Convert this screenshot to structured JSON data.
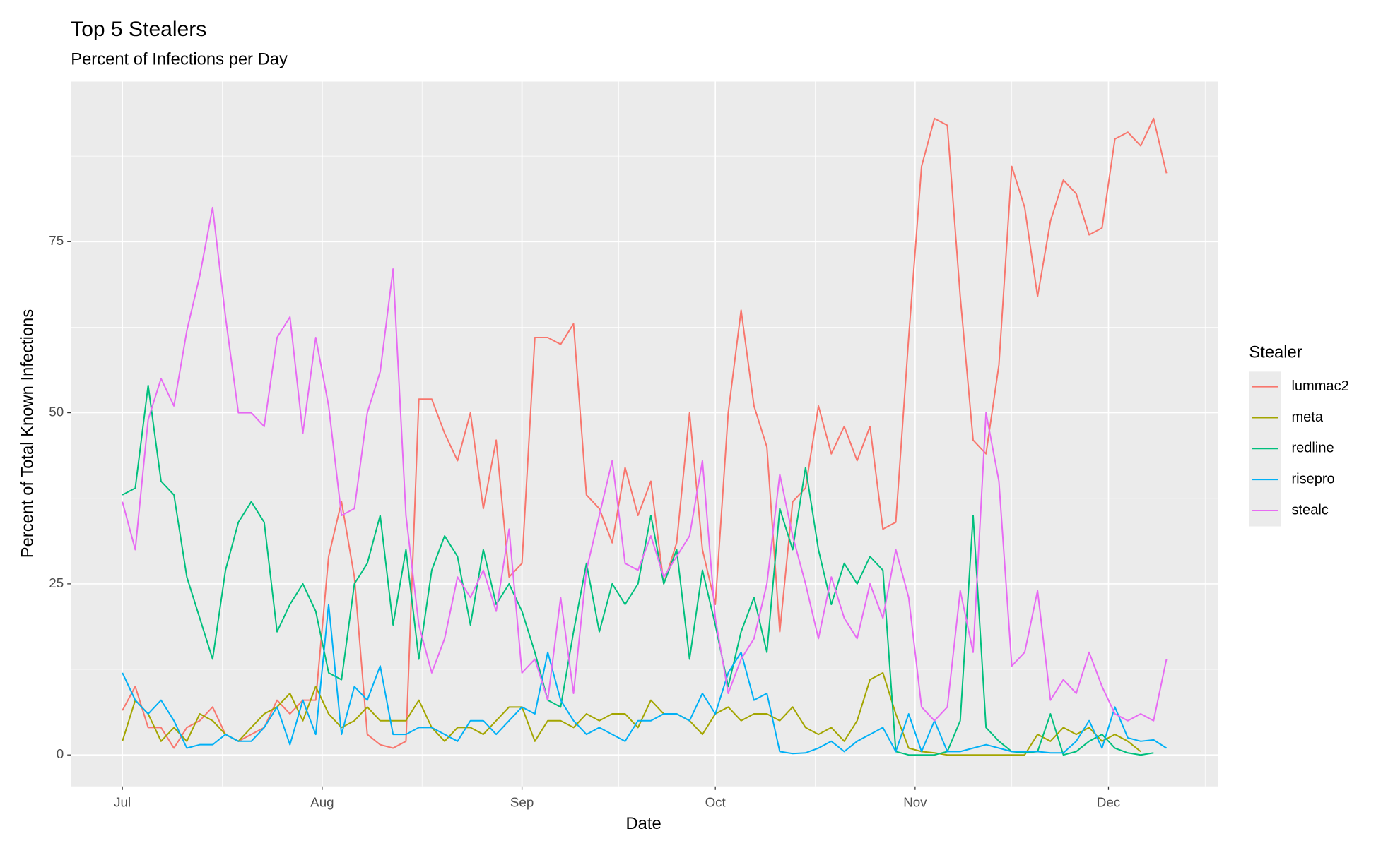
{
  "chart_data": {
    "type": "line",
    "title": "Top 5 Stealers",
    "subtitle": "Percent of Infections per Day",
    "x_label": "Date",
    "y_label": "Percent of Total Known Infections",
    "legend_title": "Stealer",
    "legend_position": "right",
    "grid": true,
    "x": [
      0,
      2,
      4,
      6,
      8,
      10,
      12,
      14,
      16,
      18,
      20,
      22,
      24,
      26,
      28,
      30,
      32,
      34,
      36,
      38,
      40,
      42,
      44,
      46,
      48,
      50,
      52,
      54,
      56,
      58,
      60,
      62,
      64,
      66,
      68,
      70,
      72,
      74,
      76,
      78,
      80,
      82,
      84,
      86,
      88,
      90,
      92,
      94,
      96,
      98,
      100,
      102,
      104,
      106,
      108,
      110,
      112,
      114,
      116,
      118,
      120,
      122,
      124,
      126,
      128,
      130,
      132,
      134,
      136,
      138,
      140,
      142,
      144,
      146,
      148,
      150,
      152,
      154,
      156,
      158,
      160,
      162
    ],
    "xlim": [
      -8,
      170
    ],
    "xticks": [
      {
        "value": 0,
        "label": "Jul"
      },
      {
        "value": 31,
        "label": "Aug"
      },
      {
        "value": 62,
        "label": "Sep"
      },
      {
        "value": 92,
        "label": "Oct"
      },
      {
        "value": 123,
        "label": "Nov"
      },
      {
        "value": 153,
        "label": "Dec"
      }
    ],
    "ylim": [
      -4.6,
      98.4
    ],
    "yticks": [
      0,
      25,
      50,
      75
    ],
    "series": [
      {
        "name": "lummac2",
        "color": "#F8766D",
        "values": [
          6.5,
          10,
          4,
          4,
          1,
          4,
          5,
          7,
          3,
          2,
          3,
          4,
          8,
          6,
          8,
          8,
          29,
          37,
          26,
          3,
          1.5,
          1,
          2,
          52,
          52,
          47,
          43,
          50,
          36,
          46,
          26,
          28,
          61,
          61,
          60,
          63,
          38,
          36,
          31,
          42,
          35,
          40,
          25,
          31,
          50,
          30,
          22,
          50,
          65,
          51,
          45,
          18,
          37,
          39,
          51,
          44,
          48,
          43,
          48,
          33,
          34,
          61,
          86,
          93,
          92,
          67,
          46,
          44,
          57,
          86,
          80,
          67,
          78,
          84,
          82,
          76,
          77,
          90,
          91,
          89,
          93,
          85
        ]
      },
      {
        "name": "meta",
        "color": "#A3A500",
        "values": [
          2,
          8,
          6,
          2,
          4,
          2,
          6,
          5,
          3,
          2,
          4,
          6,
          7,
          9,
          5,
          10,
          6,
          4,
          5,
          7,
          5,
          5,
          5,
          8,
          4,
          2,
          4,
          4,
          3,
          5,
          7,
          7,
          2,
          5,
          5,
          4,
          6,
          5,
          6,
          6,
          4,
          8,
          6,
          6,
          5,
          3,
          6,
          7,
          5,
          6,
          6,
          5,
          7,
          4,
          3,
          4,
          2,
          5,
          11,
          12,
          6,
          1,
          0.5,
          0.3,
          0,
          0,
          0,
          0,
          0,
          0,
          0,
          3,
          2,
          4,
          3,
          4,
          2,
          3,
          2,
          0.5,
          null,
          null
        ]
      },
      {
        "name": "redline",
        "color": "#00BF7D",
        "values": [
          38,
          39,
          54,
          40,
          38,
          26,
          20,
          14,
          27,
          34,
          37,
          34,
          18,
          22,
          25,
          21,
          12,
          11,
          25,
          28,
          35,
          19,
          30,
          14,
          27,
          32,
          29,
          19,
          30,
          22,
          25,
          21,
          15,
          8,
          7,
          18,
          28,
          18,
          25,
          22,
          25,
          35,
          25,
          30,
          14,
          27,
          19,
          10,
          18,
          23,
          15,
          36,
          30,
          42,
          30,
          22,
          28,
          25,
          29,
          27,
          0.5,
          0,
          0,
          0,
          0.5,
          5,
          35,
          4,
          2,
          0.5,
          0.3,
          0.5,
          6,
          0,
          0.5,
          2,
          3,
          1,
          0.3,
          0,
          0.3,
          null
        ]
      },
      {
        "name": "risepro",
        "color": "#00B0F6",
        "values": [
          12,
          8,
          6,
          8,
          5,
          1,
          1.5,
          1.5,
          3,
          2,
          2,
          4,
          7,
          1.5,
          8,
          3,
          22,
          3,
          10,
          8,
          13,
          3,
          3,
          4,
          4,
          3,
          2,
          5,
          5,
          3,
          5,
          7,
          6,
          15,
          8,
          5,
          3,
          4,
          3,
          2,
          5,
          5,
          6,
          6,
          5,
          9,
          6,
          12,
          15,
          8,
          9,
          0.5,
          0.2,
          0.3,
          1,
          2,
          0.5,
          2,
          3,
          4,
          0.5,
          6,
          0.5,
          5,
          0.5,
          0.5,
          1,
          1.5,
          1,
          0.5,
          0.5,
          0.5,
          0.3,
          0.3,
          2,
          5,
          1,
          7,
          2.5,
          2,
          2.2,
          1
        ]
      },
      {
        "name": "stealc",
        "color": "#E76BF3",
        "values": [
          37,
          30,
          49,
          55,
          51,
          62,
          70,
          80,
          64,
          50,
          50,
          48,
          61,
          64,
          47,
          61,
          51,
          35,
          36,
          50,
          56,
          71,
          35,
          19,
          12,
          17,
          26,
          23,
          27,
          21,
          33,
          12,
          14,
          8,
          23,
          9,
          27,
          35,
          43,
          28,
          27,
          32,
          26,
          29,
          32,
          43,
          20,
          9,
          14,
          17,
          25,
          41,
          32,
          25,
          17,
          26,
          20,
          17,
          25,
          20,
          30,
          23,
          7,
          5,
          7,
          24,
          15,
          50,
          40,
          13,
          15,
          24,
          8,
          11,
          9,
          15,
          10,
          6,
          5,
          6,
          5,
          14
        ]
      }
    ]
  }
}
